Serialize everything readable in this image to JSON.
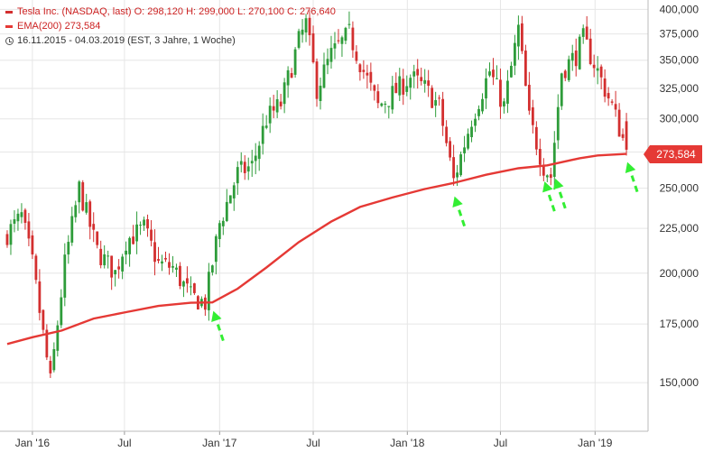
{
  "legend": {
    "line1": "Tesla Inc. (NASDAQ, last)  O: 298,120  H: 299,000  L: 270,100  C: 276,640",
    "line2": "EMA(200)  273,584",
    "line3": "16.11.2015 - 04.03.2019    (EST, 3 Jahre, 1 Woche)"
  },
  "last_value_label": "273,584",
  "colors": {
    "up": "#2e9c3a",
    "down": "#d32f2f",
    "ema": "#e53935",
    "arrow": "#33ee33",
    "grid": "#e6e6e6"
  },
  "chart_data": {
    "type": "candlestick",
    "title": "Tesla Inc. (NASDAQ, last)",
    "yscale": "log",
    "ylim": [
      132000,
      410000
    ],
    "y_ticks": [
      150000,
      175000,
      200000,
      225000,
      250000,
      275000,
      300000,
      325000,
      350000,
      375000,
      400000
    ],
    "y_tick_labels": [
      "150,000",
      "175,000",
      "200,000",
      "225,000",
      "250,000",
      "275,000",
      "300,000",
      "325,000",
      "350,000",
      "375,000",
      "400,000"
    ],
    "x_ticks": [
      {
        "label": "Jan '16",
        "date": "2016-01-04"
      },
      {
        "label": "Jul",
        "date": "2016-07-01"
      },
      {
        "label": "Jan '17",
        "date": "2017-01-02"
      },
      {
        "label": "Jul",
        "date": "2017-07-03"
      },
      {
        "label": "Jan '18",
        "date": "2018-01-02"
      },
      {
        "label": "Jul",
        "date": "2018-07-02"
      },
      {
        "label": "Jan '19",
        "date": "2019-01-02"
      }
    ],
    "date_range": [
      "2015-11-16",
      "2019-03-04"
    ],
    "interval": "1 Woche",
    "close_path": [
      [
        "2015-11-16",
        222000
      ],
      [
        "2015-12-14",
        232000
      ],
      [
        "2016-01-04",
        205000
      ],
      [
        "2016-02-08",
        150000
      ],
      [
        "2016-03-07",
        205000
      ],
      [
        "2016-04-04",
        250000
      ],
      [
        "2016-05-09",
        212000
      ],
      [
        "2016-06-13",
        200000
      ],
      [
        "2016-07-04",
        218000
      ],
      [
        "2016-08-08",
        225000
      ],
      [
        "2016-09-05",
        205000
      ],
      [
        "2016-10-03",
        203000
      ],
      [
        "2016-11-07",
        188000
      ],
      [
        "2016-12-05",
        185000
      ],
      [
        "2017-01-02",
        228000
      ],
      [
        "2017-02-06",
        260000
      ],
      [
        "2017-03-06",
        265000
      ],
      [
        "2017-04-03",
        300000
      ],
      [
        "2017-05-01",
        312000
      ],
      [
        "2017-06-05",
        368000
      ],
      [
        "2017-06-19",
        385000
      ],
      [
        "2017-07-10",
        325000
      ],
      [
        "2017-08-07",
        355000
      ],
      [
        "2017-09-11",
        375000
      ],
      [
        "2017-10-09",
        340000
      ],
      [
        "2017-11-06",
        310000
      ],
      [
        "2017-12-04",
        320000
      ],
      [
        "2018-01-08",
        335000
      ],
      [
        "2018-02-05",
        325000
      ],
      [
        "2018-03-05",
        310000
      ],
      [
        "2018-04-02",
        255000
      ],
      [
        "2018-05-07",
        300000
      ],
      [
        "2018-06-11",
        340000
      ],
      [
        "2018-07-09",
        310000
      ],
      [
        "2018-08-06",
        380000
      ],
      [
        "2018-08-27",
        300000
      ],
      [
        "2018-09-24",
        265000
      ],
      [
        "2018-10-08",
        258000
      ],
      [
        "2018-10-29",
        340000
      ],
      [
        "2018-11-26",
        355000
      ],
      [
        "2018-12-10",
        370000
      ],
      [
        "2019-01-07",
        340000
      ],
      [
        "2019-02-04",
        310000
      ],
      [
        "2019-03-04",
        276640
      ]
    ],
    "series": [
      {
        "name": "EMA(200)",
        "type": "line",
        "points": [
          [
            "2015-11-16",
            166000
          ],
          [
            "2016-01-04",
            169000
          ],
          [
            "2016-03-01",
            172000
          ],
          [
            "2016-05-02",
            177500
          ],
          [
            "2016-07-04",
            180500
          ],
          [
            "2016-09-05",
            183500
          ],
          [
            "2016-11-07",
            185000
          ],
          [
            "2016-12-19",
            185200
          ],
          [
            "2017-02-06",
            192000
          ],
          [
            "2017-04-03",
            203000
          ],
          [
            "2017-06-05",
            217000
          ],
          [
            "2017-08-07",
            229000
          ],
          [
            "2017-10-02",
            238000
          ],
          [
            "2017-12-04",
            244000
          ],
          [
            "2018-02-05",
            249500
          ],
          [
            "2018-04-02",
            253500
          ],
          [
            "2018-06-04",
            259000
          ],
          [
            "2018-08-06",
            263500
          ],
          [
            "2018-10-01",
            265500
          ],
          [
            "2018-12-03",
            270500
          ],
          [
            "2019-01-07",
            272500
          ],
          [
            "2019-03-04",
            273584
          ]
        ]
      }
    ],
    "annotations": [
      {
        "type": "arrow",
        "target": [
          "2016-12-19",
          185000
        ]
      },
      {
        "type": "arrow",
        "target": [
          "2018-04-02",
          250000
        ]
      },
      {
        "type": "arrow",
        "target": [
          "2018-09-24",
          260000
        ]
      },
      {
        "type": "arrow",
        "target": [
          "2018-10-15",
          262000
        ]
      },
      {
        "type": "arrow",
        "target": [
          "2019-03-04",
          273584
        ]
      }
    ],
    "last_value": 273584,
    "grid": true,
    "legend_position": "top-left"
  }
}
